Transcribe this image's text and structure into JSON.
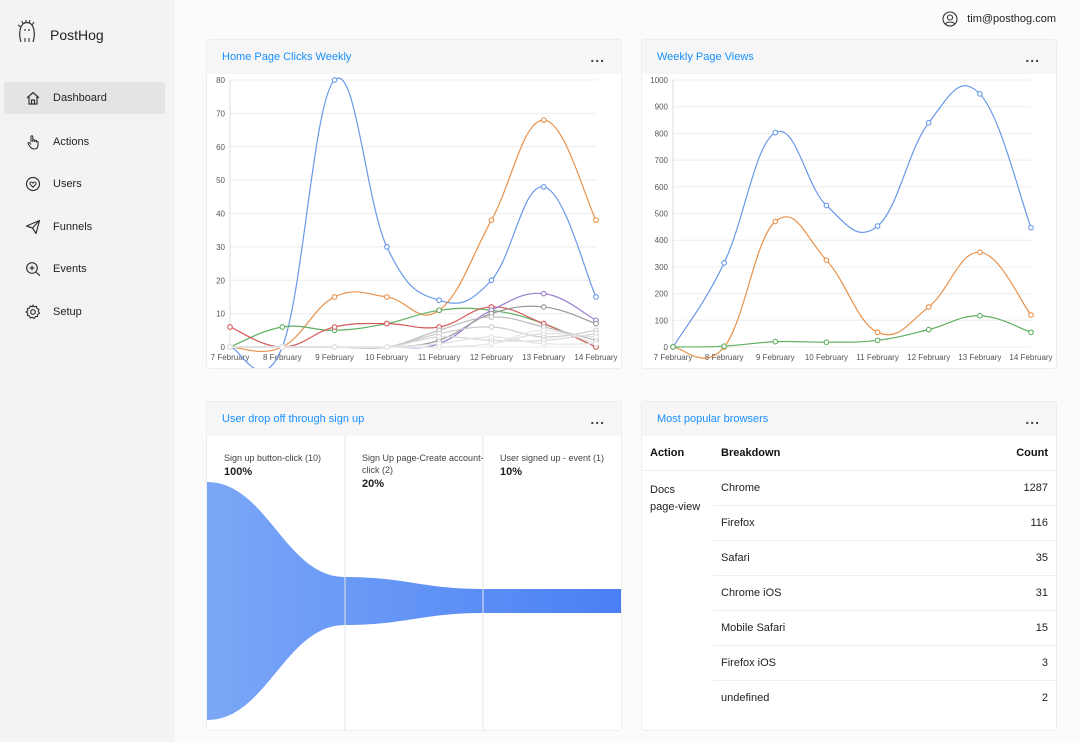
{
  "app": {
    "name": "PostHog"
  },
  "user": {
    "email": "tim@posthog.com"
  },
  "sidebar": {
    "items": [
      {
        "label": "Dashboard",
        "icon": "home-icon",
        "active": true
      },
      {
        "label": "Actions",
        "icon": "pointer-icon"
      },
      {
        "label": "Users",
        "icon": "user-heart-icon"
      },
      {
        "label": "Funnels",
        "icon": "send-icon"
      },
      {
        "label": "Events",
        "icon": "zoom-in-icon"
      },
      {
        "label": "Setup",
        "icon": "gear-icon"
      }
    ]
  },
  "cards": {
    "home_clicks": {
      "title": "Home Page Clicks Weekly",
      "menu": "..."
    },
    "page_views": {
      "title": "Weekly Page Views",
      "menu": "..."
    },
    "funnel": {
      "title": "User drop off through sign up",
      "menu": "..."
    },
    "browsers": {
      "title": "Most popular browsers",
      "menu": "..."
    }
  },
  "chart_data": [
    {
      "type": "line",
      "title": "Home Page Clicks Weekly",
      "categories": [
        "7 February",
        "8 February",
        "9 February",
        "10 February",
        "11 February",
        "12 February",
        "13 February",
        "14 February"
      ],
      "ylim": [
        0,
        80
      ],
      "yticks": [
        0,
        10,
        20,
        30,
        40,
        50,
        60,
        70,
        80
      ],
      "grid": true,
      "series": [
        {
          "values": [
            0,
            0,
            80,
            30,
            14,
            20,
            48,
            15
          ],
          "color": "#6699e8"
        },
        {
          "values": [
            0,
            0,
            15,
            15,
            11,
            38,
            68,
            38
          ],
          "color": "#e8914a"
        },
        {
          "values": [
            0,
            6,
            5,
            7,
            11,
            11,
            7,
            0
          ],
          "color": "#5fb062"
        },
        {
          "values": [
            6,
            0,
            6,
            7,
            6,
            12,
            7,
            0
          ],
          "color": "#d65a5a"
        },
        {
          "values": [
            0,
            0,
            0,
            0,
            1,
            11,
            16,
            8
          ],
          "color": "#9a7fd1"
        },
        {
          "values": [
            0,
            0,
            0,
            0,
            2,
            10,
            12,
            7
          ],
          "color": "#999999"
        },
        {
          "values": [
            0,
            0,
            0,
            0,
            5,
            9,
            6,
            2
          ],
          "color": "#bbbbbb"
        },
        {
          "values": [
            0,
            0,
            0,
            0,
            4,
            6,
            3,
            5
          ],
          "color": "#cccccc"
        },
        {
          "values": [
            0,
            0,
            0,
            0,
            3,
            2,
            2,
            4
          ],
          "color": "#d6d6d6"
        },
        {
          "values": [
            0,
            0,
            0,
            0,
            0,
            1,
            4,
            3
          ],
          "color": "#dddddd"
        },
        {
          "values": [
            0,
            0,
            0,
            0,
            1,
            3,
            1,
            1
          ],
          "color": "#e2e2e2"
        },
        {
          "values": [
            0,
            0,
            0,
            0,
            0,
            1,
            5,
            1
          ],
          "color": "#e6e6e6"
        }
      ]
    },
    {
      "type": "line",
      "title": "Weekly Page Views",
      "categories": [
        "7 February",
        "8 February",
        "9 February",
        "10 February",
        "11 February",
        "12 February",
        "13 February",
        "14 February"
      ],
      "ylim": [
        0,
        1000
      ],
      "yticks": [
        0,
        100,
        200,
        300,
        400,
        500,
        600,
        700,
        800,
        900,
        1000
      ],
      "grid": true,
      "series": [
        {
          "values": [
            0,
            315,
            803,
            530,
            453,
            840,
            948,
            447
          ],
          "color": "#6699e8"
        },
        {
          "values": [
            0,
            0,
            470,
            325,
            55,
            150,
            355,
            120
          ],
          "color": "#e8914a"
        },
        {
          "values": [
            0,
            3,
            20,
            18,
            25,
            65,
            117,
            55
          ],
          "color": "#5fb062"
        }
      ]
    }
  ],
  "funnel": {
    "steps": [
      {
        "name": "Sign up button-click (10)",
        "name2": "",
        "percent": "100%",
        "value": 100
      },
      {
        "name": "Sign Up page-Create account-",
        "name2": "click (2)",
        "percent": "20%",
        "value": 20
      },
      {
        "name": "User signed up - event (1)",
        "name2": "",
        "percent": "10%",
        "value": 10
      }
    ],
    "colors": [
      "#7ba7f6",
      "#4a80f5"
    ]
  },
  "browsers": {
    "headers": {
      "action": "Action",
      "breakdown": "Breakdown",
      "count": "Count"
    },
    "action_line1": "Docs",
    "action_line2": "page-view",
    "rows": [
      {
        "breakdown": "Chrome",
        "count": "1287"
      },
      {
        "breakdown": "Firefox",
        "count": "116"
      },
      {
        "breakdown": "Safari",
        "count": "35"
      },
      {
        "breakdown": "Chrome iOS",
        "count": "31"
      },
      {
        "breakdown": "Mobile Safari",
        "count": "15"
      },
      {
        "breakdown": "Firefox iOS",
        "count": "3"
      },
      {
        "breakdown": "undefined",
        "count": "2"
      }
    ]
  }
}
